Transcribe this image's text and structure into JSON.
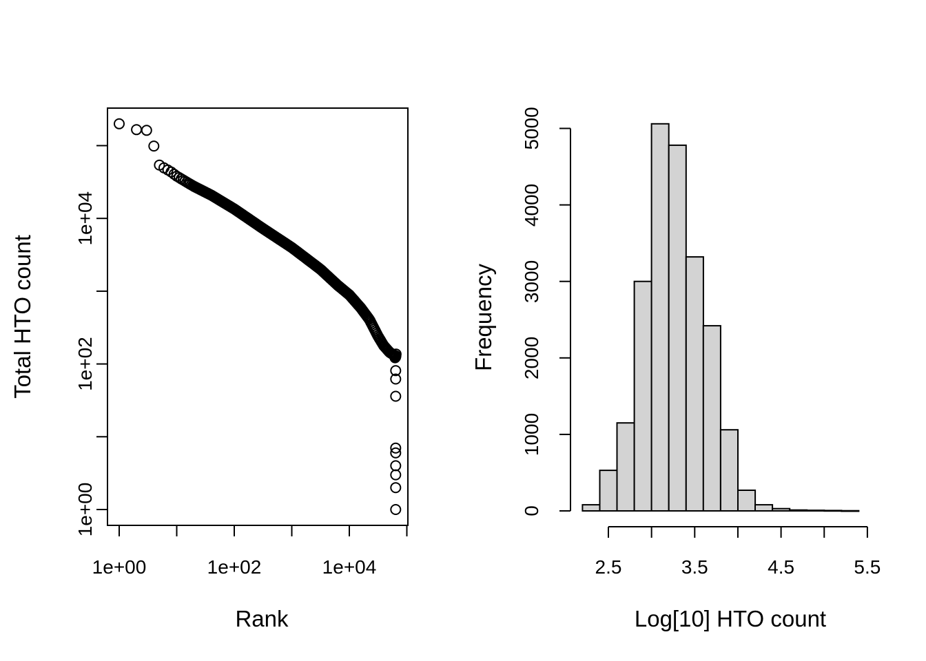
{
  "figure": {
    "background": "#ffffff",
    "foreground": "#000000",
    "bar_fill": "#d3d3d3"
  },
  "left_plot": {
    "xlabel": "Rank",
    "ylabel": "Total HTO count",
    "x_tick_labels": [
      "1e+00",
      "1e+02",
      "1e+04"
    ],
    "y_tick_labels": [
      "1e+00",
      "1e+02",
      "1e+04"
    ]
  },
  "right_plot": {
    "xlabel": "Log[10] HTO count",
    "ylabel": "Frequency",
    "x_tick_labels": [
      "2.5",
      "3.5",
      "4.5",
      "5.5"
    ],
    "y_tick_labels": [
      "0",
      "1000",
      "2000",
      "3000",
      "4000",
      "5000"
    ]
  },
  "chart_data": [
    {
      "type": "scatter",
      "title": "",
      "xlabel": "Rank",
      "ylabel": "Total HTO count",
      "xscale": "log10",
      "yscale": "log10",
      "marker": "open-circle",
      "xlim": [
        1,
        100000
      ],
      "ylim": [
        1,
        100000
      ],
      "x_tick_values_log10": [
        0,
        1,
        2,
        3,
        4,
        5
      ],
      "y_tick_values_log10": [
        0,
        1,
        2,
        3,
        4,
        5
      ],
      "grid": false,
      "description": "Barcode rank plot: total HTO count versus rank, both on log scale. Dense decreasing curve with steep knee near rank 20000-60000 ending in a blob at count ~130, plus isolated low-count points at the maximum rank.",
      "curve_anchors_log10": [
        [
          0.0,
          5.3
        ],
        [
          0.3,
          5.22
        ],
        [
          0.48,
          5.21
        ],
        [
          0.6,
          5.0
        ],
        [
          0.7,
          4.73
        ],
        [
          0.9,
          4.64
        ],
        [
          1.0,
          4.58
        ],
        [
          1.3,
          4.44
        ],
        [
          1.6,
          4.32
        ],
        [
          2.0,
          4.13
        ],
        [
          2.5,
          3.86
        ],
        [
          3.0,
          3.6
        ],
        [
          3.5,
          3.3
        ],
        [
          3.8,
          3.08
        ],
        [
          4.0,
          2.95
        ],
        [
          4.2,
          2.77
        ],
        [
          4.35,
          2.61
        ],
        [
          4.5,
          2.38
        ],
        [
          4.6,
          2.25
        ],
        [
          4.7,
          2.16
        ],
        [
          4.78,
          2.12
        ],
        [
          4.815,
          2.11
        ]
      ],
      "blob_extra_log10": [
        [
          4.795,
          2.085
        ],
        [
          4.805,
          2.095
        ],
        [
          4.813,
          2.135
        ]
      ],
      "tail_points": [
        [
          64000,
          81
        ],
        [
          64000,
          62
        ],
        [
          64000,
          36
        ],
        [
          64000,
          7
        ],
        [
          64000,
          6
        ],
        [
          64000,
          4
        ],
        [
          64000,
          3
        ],
        [
          64000,
          2
        ],
        [
          64000,
          1
        ]
      ]
    },
    {
      "type": "histogram",
      "title": "",
      "xlabel": "Log[10] HTO count",
      "ylabel": "Frequency",
      "bin_start": 2.2,
      "bin_width": 0.2,
      "bin_edges": [
        2.2,
        2.4,
        2.6,
        2.8,
        3.0,
        3.2,
        3.4,
        3.6,
        3.8,
        4.0,
        4.2,
        4.4,
        4.6,
        4.8,
        5.0,
        5.2,
        5.4
      ],
      "counts": [
        80,
        530,
        1150,
        3000,
        5060,
        4780,
        3320,
        2420,
        1060,
        270,
        80,
        30,
        12,
        8,
        5,
        3
      ],
      "x_tick_values": [
        2.5,
        3.0,
        3.5,
        4.0,
        4.5,
        5.0,
        5.5
      ],
      "y_tick_values": [
        0,
        1000,
        2000,
        3000,
        4000,
        5000
      ],
      "ylim": [
        0,
        5000
      ],
      "grid": false,
      "bar_fill": "#d3d3d3",
      "bar_stroke": "#000000"
    }
  ]
}
